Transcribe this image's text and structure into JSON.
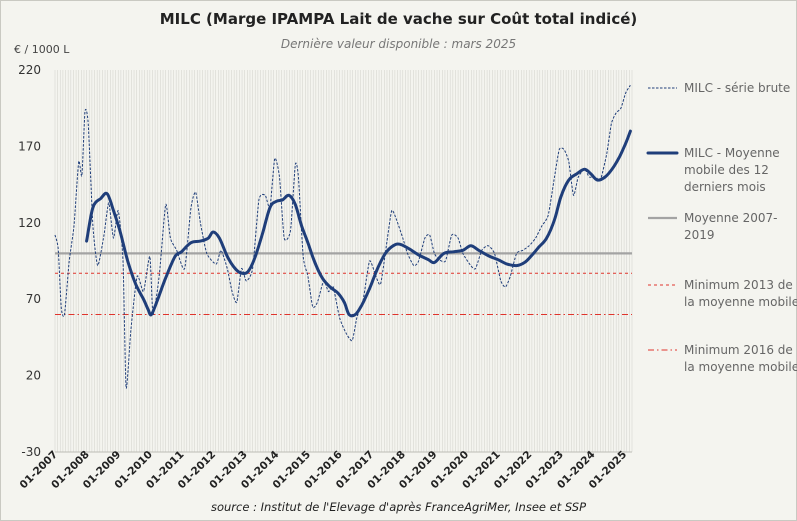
{
  "title": "MILC (Marge IPAMPA Lait de vache sur Coût total indicé)",
  "subtitle": "Dernière valeur disponible : mars 2025",
  "unit": "€ / 1000 L",
  "source": "source : Institut de l'Elevage d'après FranceAgriMer, Insee et SSP",
  "chart_data": {
    "type": "line",
    "ylim": [
      -30,
      220
    ],
    "yticks": [
      -30,
      20,
      70,
      120,
      170,
      220
    ],
    "xlim": [
      2007.0,
      2025.25
    ],
    "xtick_labels": [
      "01-2007",
      "01-2008",
      "01-2009",
      "01-2010",
      "01-2011",
      "01-2012",
      "01-2013",
      "01-2014",
      "01-2015",
      "01-2016",
      "01-2017",
      "01-2018",
      "01-2019",
      "01-2020",
      "01-2021",
      "01-2022",
      "01-2023",
      "01-2024",
      "01-2025"
    ],
    "grid": "vertical-monthly",
    "legend_position": "right",
    "series": [
      {
        "name": "MILC - série brute",
        "style": "dashed-thin",
        "color": "#1f3e7a",
        "points": [
          [
            2007.0,
            112
          ],
          [
            2007.1,
            103
          ],
          [
            2007.2,
            64
          ],
          [
            2007.3,
            60
          ],
          [
            2007.45,
            95
          ],
          [
            2007.6,
            118
          ],
          [
            2007.75,
            160
          ],
          [
            2007.85,
            151
          ],
          [
            2007.95,
            193
          ],
          [
            2008.05,
            185
          ],
          [
            2008.2,
            118
          ],
          [
            2008.35,
            92
          ],
          [
            2008.55,
            112
          ],
          [
            2008.7,
            133
          ],
          [
            2008.85,
            110
          ],
          [
            2009.0,
            128
          ],
          [
            2009.15,
            95
          ],
          [
            2009.25,
            12
          ],
          [
            2009.4,
            50
          ],
          [
            2009.6,
            85
          ],
          [
            2009.8,
            75
          ],
          [
            2010.0,
            98
          ],
          [
            2010.1,
            60
          ],
          [
            2010.3,
            86
          ],
          [
            2010.5,
            132
          ],
          [
            2010.65,
            110
          ],
          [
            2010.85,
            102
          ],
          [
            2011.1,
            90
          ],
          [
            2011.3,
            130
          ],
          [
            2011.45,
            140
          ],
          [
            2011.6,
            120
          ],
          [
            2011.8,
            100
          ],
          [
            2012.1,
            93
          ],
          [
            2012.25,
            102
          ],
          [
            2012.45,
            90
          ],
          [
            2012.6,
            75
          ],
          [
            2012.75,
            68
          ],
          [
            2012.9,
            90
          ],
          [
            2013.05,
            82
          ],
          [
            2013.25,
            90
          ],
          [
            2013.45,
            135
          ],
          [
            2013.65,
            138
          ],
          [
            2013.8,
            130
          ],
          [
            2013.95,
            162
          ],
          [
            2014.1,
            150
          ],
          [
            2014.25,
            110
          ],
          [
            2014.45,
            115
          ],
          [
            2014.6,
            158
          ],
          [
            2014.7,
            150
          ],
          [
            2014.85,
            98
          ],
          [
            2015.0,
            85
          ],
          [
            2015.15,
            65
          ],
          [
            2015.3,
            68
          ],
          [
            2015.5,
            82
          ],
          [
            2015.65,
            75
          ],
          [
            2015.8,
            78
          ],
          [
            2016.0,
            58
          ],
          [
            2016.2,
            48
          ],
          [
            2016.4,
            43
          ],
          [
            2016.55,
            58
          ],
          [
            2016.75,
            70
          ],
          [
            2016.95,
            95
          ],
          [
            2017.15,
            85
          ],
          [
            2017.3,
            80
          ],
          [
            2017.5,
            108
          ],
          [
            2017.65,
            128
          ],
          [
            2017.8,
            122
          ],
          [
            2018.0,
            110
          ],
          [
            2018.15,
            100
          ],
          [
            2018.35,
            92
          ],
          [
            2018.5,
            95
          ],
          [
            2018.7,
            110
          ],
          [
            2018.85,
            112
          ],
          [
            2019.0,
            100
          ],
          [
            2019.15,
            96
          ],
          [
            2019.35,
            95
          ],
          [
            2019.55,
            112
          ],
          [
            2019.75,
            110
          ],
          [
            2019.9,
            100
          ],
          [
            2020.15,
            92
          ],
          [
            2020.3,
            90
          ],
          [
            2020.5,
            102
          ],
          [
            2020.7,
            105
          ],
          [
            2020.9,
            100
          ],
          [
            2021.1,
            82
          ],
          [
            2021.25,
            78
          ],
          [
            2021.4,
            85
          ],
          [
            2021.6,
            100
          ],
          [
            2021.8,
            102
          ],
          [
            2022.0,
            105
          ],
          [
            2022.2,
            110
          ],
          [
            2022.4,
            118
          ],
          [
            2022.6,
            125
          ],
          [
            2022.8,
            150
          ],
          [
            2022.95,
            168
          ],
          [
            2023.1,
            168
          ],
          [
            2023.25,
            160
          ],
          [
            2023.4,
            138
          ],
          [
            2023.55,
            150
          ],
          [
            2023.75,
            155
          ],
          [
            2023.9,
            150
          ],
          [
            2024.1,
            150
          ],
          [
            2024.25,
            148
          ],
          [
            2024.45,
            165
          ],
          [
            2024.6,
            185
          ],
          [
            2024.75,
            192
          ],
          [
            2024.9,
            195
          ],
          [
            2025.05,
            205
          ],
          [
            2025.2,
            210
          ]
        ]
      },
      {
        "name": "MILC - Moyenne mobile des 12 derniers mois",
        "style": "solid-thick",
        "color": "#1f3e7a",
        "points": [
          [
            2008.0,
            108
          ],
          [
            2008.2,
            130
          ],
          [
            2008.45,
            136
          ],
          [
            2008.65,
            139
          ],
          [
            2008.85,
            128
          ],
          [
            2009.05,
            115
          ],
          [
            2009.3,
            95
          ],
          [
            2009.55,
            80
          ],
          [
            2009.8,
            70
          ],
          [
            2009.95,
            63
          ],
          [
            2010.05,
            60
          ],
          [
            2010.25,
            70
          ],
          [
            2010.5,
            84
          ],
          [
            2010.8,
            98
          ],
          [
            2011.0,
            101
          ],
          [
            2011.3,
            107
          ],
          [
            2011.6,
            108
          ],
          [
            2011.85,
            110
          ],
          [
            2012.0,
            114
          ],
          [
            2012.2,
            110
          ],
          [
            2012.45,
            98
          ],
          [
            2012.7,
            90
          ],
          [
            2012.9,
            87
          ],
          [
            2013.1,
            88
          ],
          [
            2013.3,
            96
          ],
          [
            2013.55,
            112
          ],
          [
            2013.8,
            130
          ],
          [
            2014.0,
            134
          ],
          [
            2014.2,
            135
          ],
          [
            2014.4,
            138
          ],
          [
            2014.6,
            132
          ],
          [
            2014.8,
            118
          ],
          [
            2015.0,
            107
          ],
          [
            2015.2,
            95
          ],
          [
            2015.45,
            84
          ],
          [
            2015.7,
            78
          ],
          [
            2015.95,
            74
          ],
          [
            2016.15,
            68
          ],
          [
            2016.3,
            60
          ],
          [
            2016.5,
            60
          ],
          [
            2016.7,
            66
          ],
          [
            2016.95,
            77
          ],
          [
            2017.2,
            90
          ],
          [
            2017.45,
            100
          ],
          [
            2017.7,
            105
          ],
          [
            2017.9,
            106
          ],
          [
            2018.2,
            103
          ],
          [
            2018.5,
            99
          ],
          [
            2018.8,
            96
          ],
          [
            2019.0,
            94
          ],
          [
            2019.3,
            100
          ],
          [
            2019.6,
            101
          ],
          [
            2019.9,
            102
          ],
          [
            2020.15,
            105
          ],
          [
            2020.4,
            102
          ],
          [
            2020.75,
            98
          ],
          [
            2021.0,
            96
          ],
          [
            2021.3,
            93
          ],
          [
            2021.6,
            92
          ],
          [
            2021.85,
            94
          ],
          [
            2022.05,
            98
          ],
          [
            2022.3,
            104
          ],
          [
            2022.55,
            110
          ],
          [
            2022.8,
            122
          ],
          [
            2023.0,
            137
          ],
          [
            2023.25,
            148
          ],
          [
            2023.5,
            152
          ],
          [
            2023.75,
            155
          ],
          [
            2023.95,
            152
          ],
          [
            2024.15,
            148
          ],
          [
            2024.4,
            150
          ],
          [
            2024.65,
            156
          ],
          [
            2024.85,
            163
          ],
          [
            2025.05,
            172
          ],
          [
            2025.2,
            180
          ]
        ]
      },
      {
        "name": "Moyenne 2007-2019",
        "style": "solid-grey",
        "color": "#999999",
        "value": 100
      },
      {
        "name": "Minimum 2013 de la moyenne mobile",
        "style": "dashed-red",
        "color": "#e0342c",
        "value": 87
      },
      {
        "name": "Minimum 2016 de la moyenne mobile",
        "style": "dashdot-red",
        "color": "#e0342c",
        "value": 60
      }
    ]
  }
}
